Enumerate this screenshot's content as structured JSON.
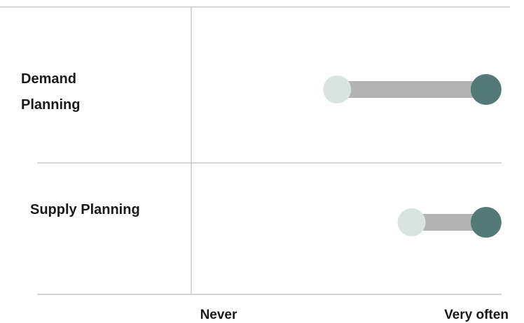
{
  "chart_data": {
    "type": "dumbbell",
    "categories": [
      {
        "label_lines": [
          "Demand",
          "Planning"
        ],
        "start": 0.47,
        "end": 0.95
      },
      {
        "label_lines": [
          "Supply Planning"
        ],
        "start": 0.71,
        "end": 0.95
      }
    ],
    "x_tick_labels": {
      "min": "Never",
      "max": "Very often"
    },
    "xlim": [
      0,
      1
    ],
    "grid": true,
    "colors": {
      "start_dot": "#d9e4e1",
      "end_dot": "#537a76",
      "connector": "#b3b3b3",
      "gridline": "#c8c8c8",
      "text": "#1a1a1a"
    }
  }
}
